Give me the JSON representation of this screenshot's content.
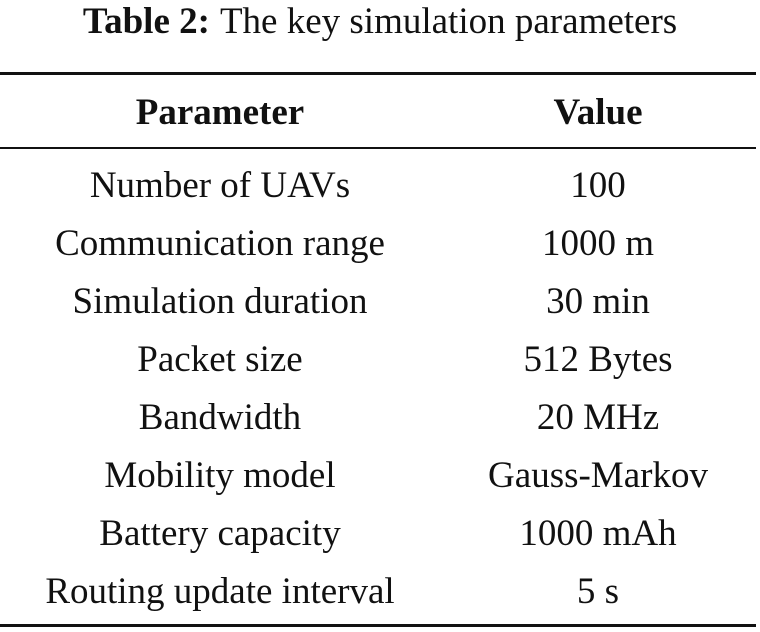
{
  "caption": {
    "label": "Table 2:",
    "title": "The key simulation parameters"
  },
  "table": {
    "headers": {
      "parameter": "Parameter",
      "value": "Value"
    },
    "rows": [
      {
        "parameter": "Number of UAVs",
        "value": "100"
      },
      {
        "parameter": "Communication range",
        "value": "1000 m"
      },
      {
        "parameter": "Simulation duration",
        "value": "30 min"
      },
      {
        "parameter": "Packet size",
        "value": "512 Bytes"
      },
      {
        "parameter": "Bandwidth",
        "value": "20 MHz"
      },
      {
        "parameter": "Mobility model",
        "value": "Gauss-Markov"
      },
      {
        "parameter": "Battery capacity",
        "value": "1000 mAh"
      },
      {
        "parameter": "Routing update interval",
        "value": "5 s"
      }
    ]
  }
}
